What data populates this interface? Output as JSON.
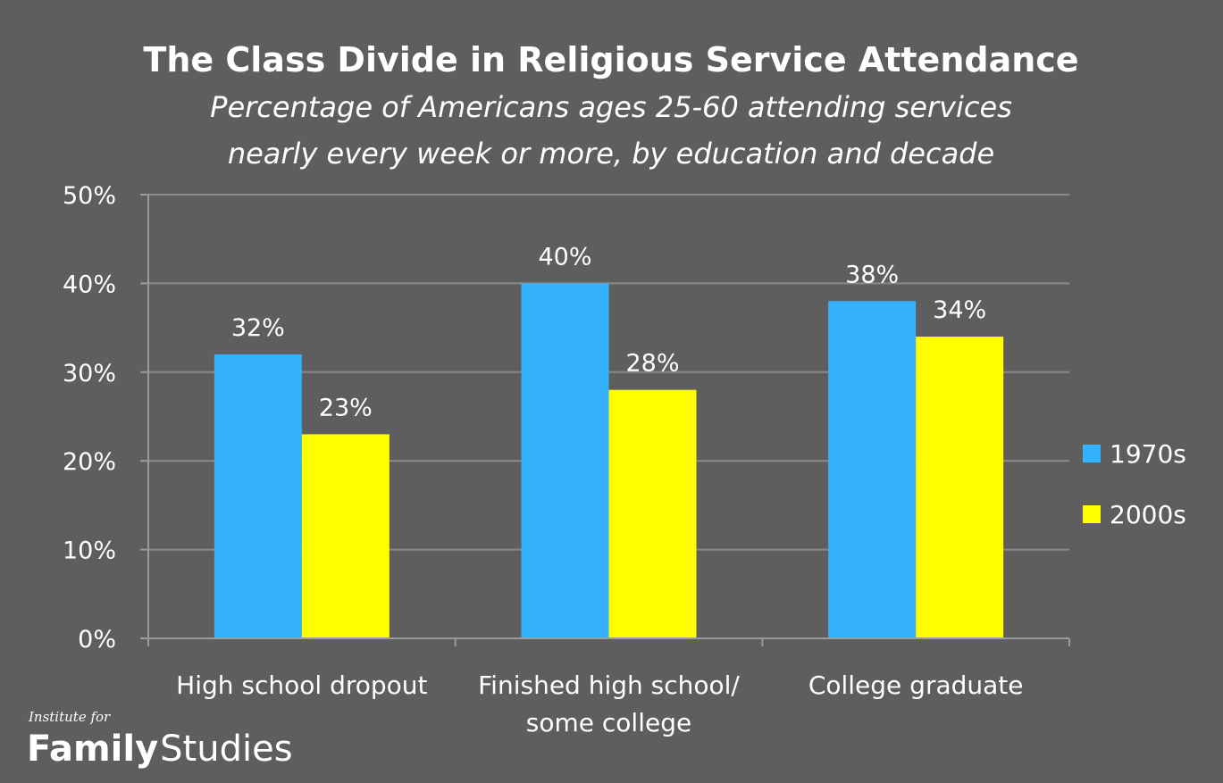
{
  "chart_data": {
    "type": "bar",
    "title": "The Class Divide in Religious Service Attendance",
    "subtitle_lines": [
      "Percentage of Americans ages 25-60 attending services",
      "nearly every week or more, by education and decade"
    ],
    "categories": [
      [
        "High school dropout"
      ],
      [
        "Finished high school/",
        "some college"
      ],
      [
        "College graduate"
      ]
    ],
    "series": [
      {
        "name": "1970s",
        "color": "#35b2fe",
        "values": [
          32,
          40,
          38
        ],
        "labels": [
          "32%",
          "40%",
          "38%"
        ]
      },
      {
        "name": "2000s",
        "color": "#ffff00",
        "values": [
          23,
          28,
          34
        ],
        "labels": [
          "23%",
          "28%",
          "34%"
        ]
      }
    ],
    "yticks": [
      0,
      10,
      20,
      30,
      40,
      50
    ],
    "ytick_labels": [
      "0%",
      "10%",
      "20%",
      "30%",
      "40%",
      "50%"
    ],
    "ylim": [
      0,
      50
    ],
    "grid": true,
    "legend_position": "right"
  },
  "branding": {
    "small": "Institute for",
    "bold": "Family",
    "light": "Studies"
  }
}
